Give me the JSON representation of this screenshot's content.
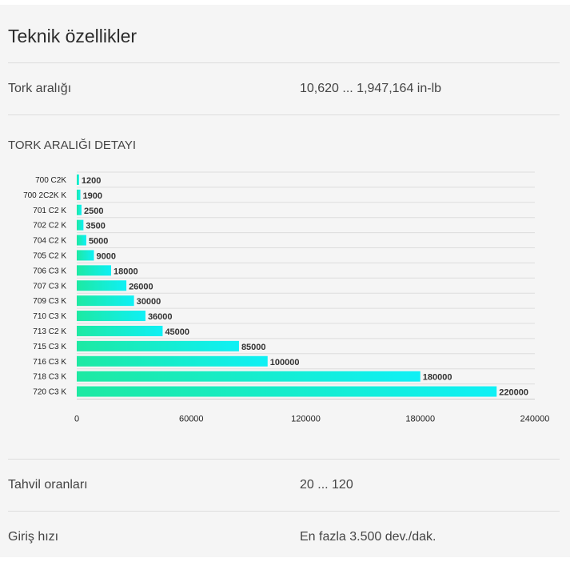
{
  "title": "Teknik özellikler",
  "specs": {
    "torque_range": {
      "label": "Tork aralığı",
      "value": "10,620 ... 1,947,164 in-lb"
    },
    "ratios": {
      "label": "Tahvil oranları",
      "value": "20 ... 120"
    },
    "input_speed": {
      "label": "Giriş hızı",
      "value": "En fazla 3.500 dev./dak."
    }
  },
  "chart_section_title": "TORK ARALIĞI DETAYI",
  "colors": {
    "bar_start": "#1de9a2",
    "bar_end": "#0ff0f5",
    "grid": "#dddddd"
  },
  "chart_data": {
    "type": "bar",
    "orientation": "horizontal",
    "categories": [
      "700 C2K",
      "700 2C2K K",
      "701 C2 K",
      "702 C2 K",
      "704 C2 K",
      "705 C2 K",
      "706 C3 K",
      "707 C3 K",
      "709 C3 K",
      "710 C3 K",
      "713 C2 K",
      "715 C3 K",
      "716 C3 K",
      "718 C3 K",
      "720 C3 K"
    ],
    "values": [
      1200,
      1900,
      2500,
      3500,
      5000,
      9000,
      18000,
      26000,
      30000,
      36000,
      45000,
      85000,
      100000,
      180000,
      220000
    ],
    "value_labels": [
      "1200",
      "1900",
      "2500",
      "3500",
      "5000",
      "9000",
      "18000",
      "26000",
      "30000",
      "36000",
      "45000",
      "85000",
      "100000",
      "180000",
      "220000"
    ],
    "xlim": [
      0,
      240000
    ],
    "x_ticks": [
      0,
      60000,
      120000,
      180000,
      240000
    ],
    "x_tick_labels": [
      "0",
      "60000",
      "120000",
      "180000",
      "240000"
    ],
    "grid": true,
    "legend": "none"
  }
}
